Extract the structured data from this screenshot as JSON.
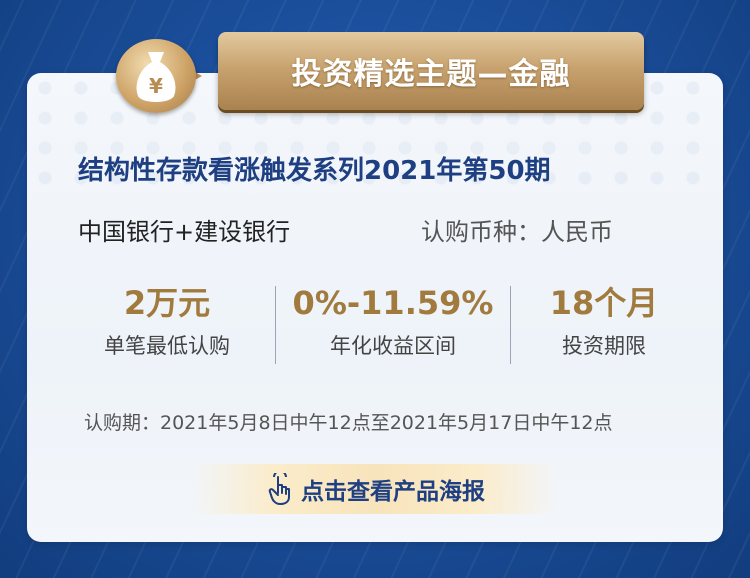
{
  "banner": {
    "title": "投资精选主题—金融"
  },
  "badge": {
    "icon": "money-bag-icon",
    "symbol": "¥"
  },
  "product": {
    "name": "结构性存款看涨触发系列2021年第50期",
    "banks": "中国银行+建设银行",
    "currency": "认购币种：人民币"
  },
  "stats": [
    {
      "value": "2万元",
      "label": "单笔最低认购"
    },
    {
      "value": "0%-11.59%",
      "label": "年化收益区间"
    },
    {
      "value": "18个月",
      "label": "投资期限"
    }
  ],
  "subscription_period": "认购期：2021年5月8日中午12点至2021年5月17日中午12点",
  "cta": {
    "label": "点击查看产品海报",
    "icon": "tap-hand-icon"
  },
  "colors": {
    "gold": "#a17a3e",
    "navy": "#1e3f82",
    "background": "#1b4f9c"
  }
}
